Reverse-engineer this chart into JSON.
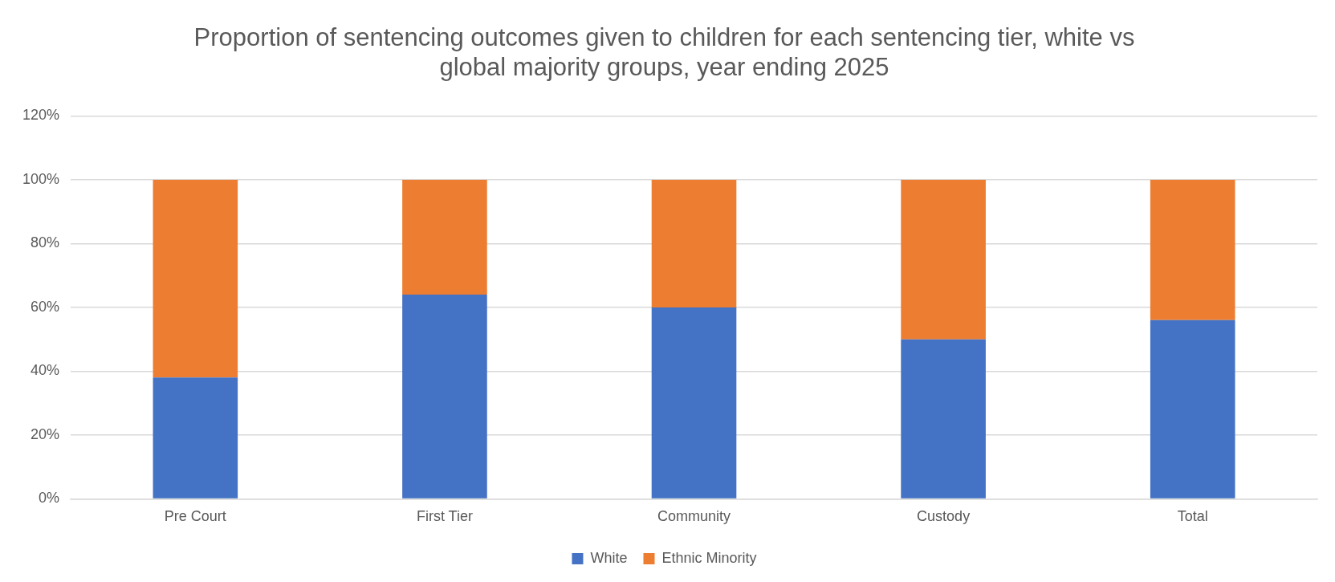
{
  "chart_data": {
    "type": "bar",
    "title": "Proportion of sentencing outcomes given to children for each sentencing tier, white vs global majority groups, year ending 2025",
    "categories": [
      "Pre Court",
      "First Tier",
      "Community",
      "Custody",
      "Total"
    ],
    "series": [
      {
        "name": "White",
        "color": "#4472c4",
        "values": [
          38,
          64,
          60,
          50,
          56
        ]
      },
      {
        "name": "Ethnic Minority",
        "color": "#ed7d31",
        "values": [
          62,
          36,
          40,
          50,
          44
        ]
      }
    ],
    "stacked": true,
    "ylim": [
      0,
      120
    ],
    "yticks": [
      {
        "value": 0,
        "label": "0%"
      },
      {
        "value": 20,
        "label": "20%"
      },
      {
        "value": 40,
        "label": "40%"
      },
      {
        "value": 60,
        "label": "60%"
      },
      {
        "value": 80,
        "label": "80%"
      },
      {
        "value": 100,
        "label": "100%"
      },
      {
        "value": 120,
        "label": "120%"
      }
    ],
    "grid": "y",
    "legend": "bottom"
  }
}
